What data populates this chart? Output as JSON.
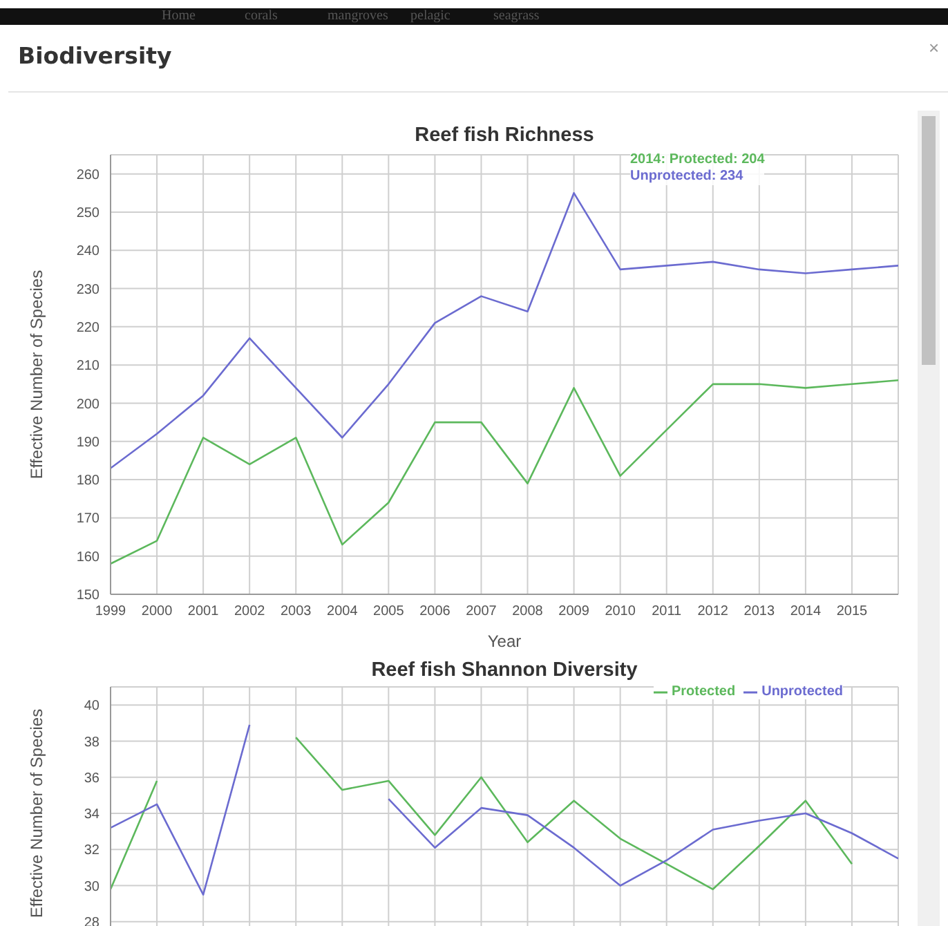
{
  "chart_data": [
    {
      "type": "line",
      "title": "Reef fish Richness",
      "xlabel": "Year",
      "ylabel": "Effective Number of Species",
      "x": [
        1999,
        2000,
        2001,
        2002,
        2003,
        2004,
        2005,
        2006,
        2007,
        2008,
        2009,
        2010,
        2011,
        2012,
        2013,
        2014,
        2015,
        2016
      ],
      "series": [
        {
          "color": "#5cb85c",
          "values": [
            158,
            164,
            191,
            184,
            191,
            163,
            174,
            195,
            195,
            179,
            204,
            181,
            193,
            205,
            205,
            204,
            205,
            206
          ]
        },
        {
          "color": "#6b6bd0",
          "values": [
            183,
            192,
            202,
            217,
            204,
            191,
            205,
            221,
            228,
            224,
            255,
            235,
            236,
            237,
            235,
            234,
            235,
            236
          ]
        }
      ],
      "xlim": [
        1999,
        2016
      ],
      "xticks": [
        1999,
        2000,
        2001,
        2002,
        2003,
        2004,
        2005,
        2006,
        2007,
        2008,
        2009,
        2010,
        2011,
        2012,
        2013,
        2014,
        2015
      ],
      "ylim": [
        150,
        265
      ],
      "yticks": [
        150,
        160,
        170,
        180,
        190,
        200,
        210,
        220,
        230,
        240,
        250,
        260
      ],
      "grid": true,
      "legend": false,
      "marker": "none",
      "annotations": [
        "Biodiversity",
        "×",
        "Home",
        "corals",
        "mangroves",
        "pelagic",
        "seagrass",
        "2014: Protected: 204",
        "Unprotected: 234"
      ]
    },
    {
      "type": "line",
      "title": "Reef fish Shannon Diversity",
      "ylabel": "Effective Number of Species",
      "x": [
        1999,
        2000,
        2001,
        2002,
        2003,
        2004,
        2005,
        2006,
        2007,
        2008,
        2009,
        2010,
        2011,
        2012,
        2013,
        2014,
        2015,
        2016
      ],
      "xlim": [
        1999,
        2016
      ],
      "xticks": [
        1999,
        2000,
        2001,
        2002,
        2003,
        2004,
        2005,
        2006,
        2007,
        2008,
        2009,
        2010,
        2011,
        2012,
        2013,
        2014,
        2015
      ],
      "tick_labels": "y",
      "series": [
        {
          "name": "Protected",
          "color": "#5cb85c",
          "values": [
            29.8,
            35.8,
            null,
            null,
            38.2,
            35.3,
            35.8,
            32.8,
            36.0,
            32.4,
            34.7,
            32.6,
            31.2,
            29.8,
            32.2,
            34.7,
            31.2,
            null
          ]
        },
        {
          "name": "Unprotected",
          "color": "#6b6bd0",
          "values": [
            33.2,
            34.5,
            29.5,
            38.9,
            null,
            null,
            34.8,
            32.1,
            34.3,
            33.9,
            32.1,
            30.0,
            31.4,
            33.1,
            33.6,
            34.0,
            32.9,
            31.5
          ]
        }
      ],
      "ylim": [
        27,
        41
      ],
      "yticks": [
        28,
        30,
        32,
        34,
        36,
        38,
        40
      ],
      "grid": true,
      "legend": "top right",
      "marker": "none"
    }
  ]
}
